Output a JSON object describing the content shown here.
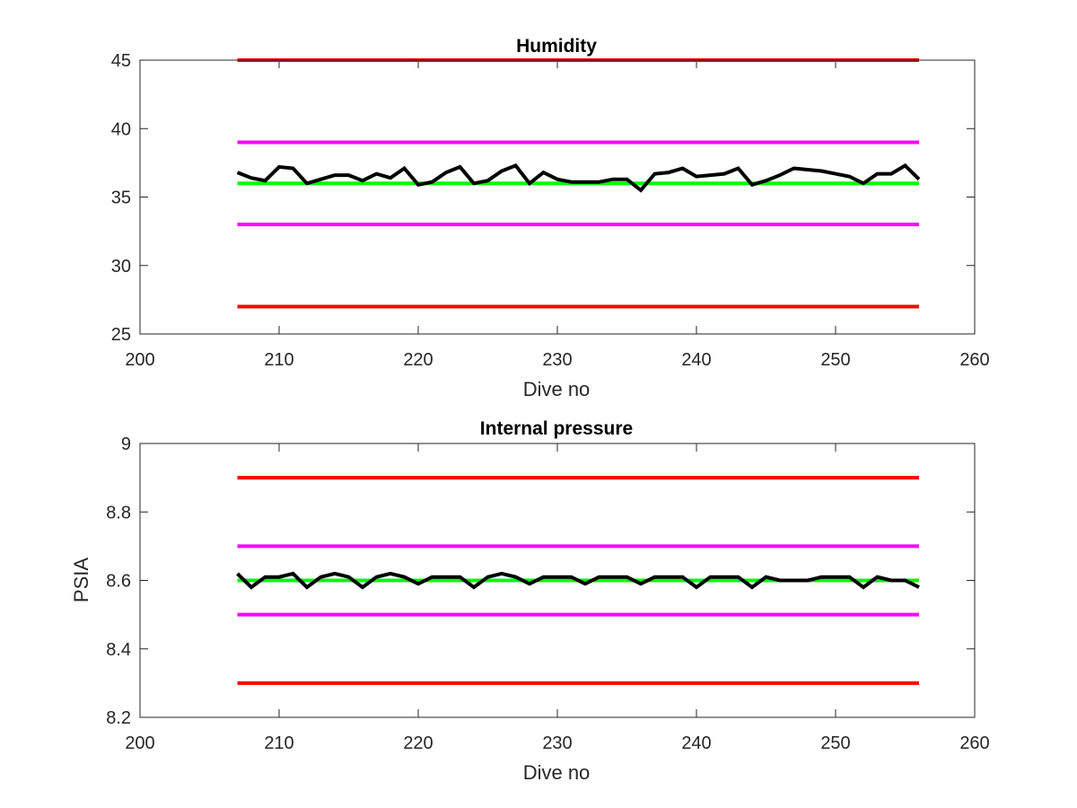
{
  "chart_data": [
    {
      "type": "line",
      "title": "Humidity",
      "xlabel": "Dive no",
      "ylabel": "",
      "xlim": [
        200,
        260
      ],
      "ylim": [
        25,
        45
      ],
      "xticks": [
        200,
        210,
        220,
        230,
        240,
        250,
        260
      ],
      "yticks": [
        25,
        30,
        35,
        40,
        45
      ],
      "grid": false,
      "legend": "none",
      "series": [
        {
          "color": "#000000",
          "x": [
            207,
            208,
            209,
            210,
            211,
            212,
            213,
            214,
            215,
            216,
            217,
            218,
            219,
            220,
            221,
            222,
            223,
            224,
            225,
            226,
            227,
            228,
            229,
            230,
            231,
            232,
            233,
            234,
            235,
            236,
            237,
            238,
            239,
            240,
            241,
            242,
            243,
            244,
            245,
            246,
            247,
            248,
            249,
            250,
            251,
            252,
            253,
            254,
            255,
            256
          ],
          "y": [
            36.8,
            36.4,
            36.2,
            37.2,
            37.1,
            36.0,
            36.3,
            36.6,
            36.6,
            36.2,
            36.7,
            36.4,
            37.1,
            35.9,
            36.1,
            36.8,
            37.2,
            36.0,
            36.2,
            36.9,
            37.3,
            36.0,
            36.8,
            36.3,
            36.1,
            36.1,
            36.1,
            36.3,
            36.3,
            35.5,
            36.7,
            36.8,
            37.1,
            36.5,
            36.6,
            36.7,
            37.1,
            35.9,
            36.2,
            36.6,
            37.1,
            37.0,
            36.9,
            36.7,
            36.5,
            36.0,
            36.7,
            36.7,
            37.3,
            36.3
          ]
        },
        {
          "color": "#ff0000",
          "x": [
            207,
            256
          ],
          "y": [
            45,
            45
          ]
        },
        {
          "color": "#ff00ff",
          "x": [
            207,
            256
          ],
          "y": [
            39,
            39
          ]
        },
        {
          "color": "#00ff00",
          "x": [
            207,
            256
          ],
          "y": [
            36,
            36
          ]
        },
        {
          "color": "#ff00ff",
          "x": [
            207,
            256
          ],
          "y": [
            33,
            33
          ]
        },
        {
          "color": "#ff0000",
          "x": [
            207,
            256
          ],
          "y": [
            27,
            27
          ]
        }
      ]
    },
    {
      "type": "line",
      "title": "Internal pressure",
      "xlabel": "Dive no",
      "ylabel": "PSIA",
      "xlim": [
        200,
        260
      ],
      "ylim": [
        8.2,
        9.0
      ],
      "xticks": [
        200,
        210,
        220,
        230,
        240,
        250,
        260
      ],
      "yticks": [
        8.2,
        8.4,
        8.6,
        8.8,
        9.0
      ],
      "ytick_labels": [
        "8.2",
        "8.4",
        "8.6",
        "8.8",
        "9"
      ],
      "grid": false,
      "legend": "none",
      "series": [
        {
          "color": "#000000",
          "x": [
            207,
            208,
            209,
            210,
            211,
            212,
            213,
            214,
            215,
            216,
            217,
            218,
            219,
            220,
            221,
            222,
            223,
            224,
            225,
            226,
            227,
            228,
            229,
            230,
            231,
            232,
            233,
            234,
            235,
            236,
            237,
            238,
            239,
            240,
            241,
            242,
            243,
            244,
            245,
            246,
            247,
            248,
            249,
            250,
            251,
            252,
            253,
            254,
            255,
            256
          ],
          "y": [
            8.62,
            8.58,
            8.61,
            8.61,
            8.62,
            8.58,
            8.61,
            8.62,
            8.61,
            8.58,
            8.61,
            8.62,
            8.61,
            8.59,
            8.61,
            8.61,
            8.61,
            8.58,
            8.61,
            8.62,
            8.61,
            8.59,
            8.61,
            8.61,
            8.61,
            8.59,
            8.61,
            8.61,
            8.61,
            8.59,
            8.61,
            8.61,
            8.61,
            8.58,
            8.61,
            8.61,
            8.61,
            8.58,
            8.61,
            8.6,
            8.6,
            8.6,
            8.61,
            8.61,
            8.61,
            8.58,
            8.61,
            8.6,
            8.6,
            8.58
          ]
        },
        {
          "color": "#ff0000",
          "x": [
            207,
            256
          ],
          "y": [
            8.9,
            8.9
          ]
        },
        {
          "color": "#ff00ff",
          "x": [
            207,
            256
          ],
          "y": [
            8.7,
            8.7
          ]
        },
        {
          "color": "#00ff00",
          "x": [
            207,
            256
          ],
          "y": [
            8.6,
            8.6
          ]
        },
        {
          "color": "#ff00ff",
          "x": [
            207,
            256
          ],
          "y": [
            8.5,
            8.5
          ]
        },
        {
          "color": "#ff0000",
          "x": [
            207,
            256
          ],
          "y": [
            8.3,
            8.3
          ]
        }
      ]
    }
  ]
}
